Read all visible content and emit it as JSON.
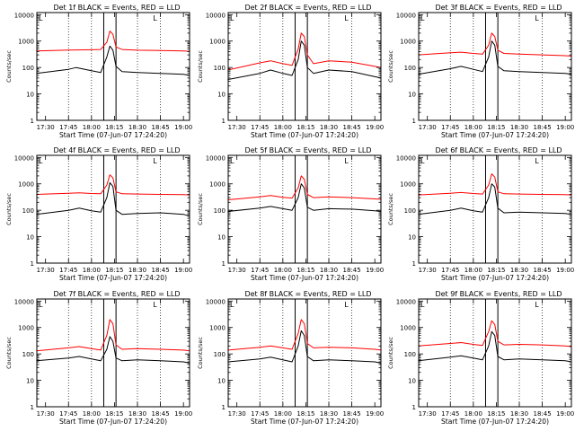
{
  "colors": {
    "events": "#000000",
    "lld": "#ff0000",
    "axis": "#000000",
    "background": "#ffffff"
  },
  "chart_data": [
    {
      "type": "line",
      "title": "Det 1f BLACK = Events, RED = LLD",
      "xlabel": "Start Time (07-Jun-07 17:24:20)",
      "ylabel": "Counts/sec",
      "x_ticks": [
        "17:30",
        "17:45",
        "18:00",
        "18:15",
        "18:30",
        "18:45",
        "19:00"
      ],
      "y_ticks": [
        "1",
        "10",
        "100",
        "1000",
        "10000"
      ],
      "ylim": [
        1,
        12000
      ],
      "yscale": "log",
      "grid": "dotted vertical at 17:45, 18:00, 18:30, 18:45",
      "corner_marks": [
        "L",
        "L"
      ],
      "interval_markers": [
        "18:08",
        "18:16"
      ],
      "series": [
        {
          "color": "red",
          "x": [
            "17:24",
            "17:45",
            "18:00",
            "18:06",
            "18:10",
            "18:12",
            "18:14",
            "18:16",
            "18:20",
            "18:30",
            "18:45",
            "19:00",
            "19:04"
          ],
          "values": [
            420,
            460,
            470,
            480,
            900,
            2400,
            1800,
            600,
            480,
            450,
            440,
            420,
            410
          ]
        },
        {
          "color": "black",
          "x": [
            "17:24",
            "17:45",
            "17:50",
            "18:00",
            "18:06",
            "18:10",
            "18:12",
            "18:14",
            "18:16",
            "18:20",
            "18:30",
            "18:45",
            "19:00",
            "19:04"
          ],
          "values": [
            60,
            85,
            100,
            75,
            65,
            250,
            650,
            450,
            110,
            70,
            65,
            60,
            55,
            50
          ]
        }
      ]
    },
    {
      "type": "line",
      "title": "Det 2f BLACK = Events, RED = LLD",
      "xlabel": "Start Time (07-Jun-07 17:24:20)",
      "ylabel": "Counts/sec",
      "x_ticks": [
        "17:30",
        "17:45",
        "18:00",
        "18:15",
        "18:30",
        "18:45",
        "19:00"
      ],
      "y_ticks": [
        "1",
        "10",
        "100",
        "1000",
        "10000"
      ],
      "ylim": [
        1,
        12000
      ],
      "yscale": "log",
      "grid": "dotted vertical at 17:45, 18:00, 18:30, 18:45",
      "corner_marks": [
        "L",
        "L"
      ],
      "interval_markers": [
        "18:08",
        "18:16"
      ],
      "series": [
        {
          "color": "red",
          "x": [
            "17:24",
            "17:45",
            "17:52",
            "18:00",
            "18:06",
            "18:10",
            "18:12",
            "18:14",
            "18:16",
            "18:20",
            "18:30",
            "18:45",
            "19:00",
            "19:04"
          ],
          "values": [
            80,
            150,
            180,
            140,
            120,
            500,
            2000,
            1500,
            300,
            140,
            180,
            160,
            110,
            100
          ]
        },
        {
          "color": "black",
          "x": [
            "17:24",
            "17:45",
            "17:52",
            "18:00",
            "18:06",
            "18:10",
            "18:12",
            "18:14",
            "18:16",
            "18:20",
            "18:30",
            "18:45",
            "19:00",
            "19:04"
          ],
          "values": [
            35,
            60,
            80,
            60,
            50,
            200,
            1000,
            700,
            100,
            60,
            80,
            70,
            45,
            40
          ]
        }
      ]
    },
    {
      "type": "line",
      "title": "Det 3f BLACK = Events, RED = LLD",
      "xlabel": "Start Time (07-Jun-07 17:24:20)",
      "ylabel": "Counts/sec",
      "x_ticks": [
        "17:30",
        "17:45",
        "18:00",
        "18:15",
        "18:30",
        "18:45",
        "19:00"
      ],
      "y_ticks": [
        "1",
        "10",
        "100",
        "1000",
        "10000"
      ],
      "ylim": [
        1,
        12000
      ],
      "yscale": "log",
      "grid": "dotted vertical at 17:45, 18:00, 18:30, 18:45",
      "corner_marks": [
        "L",
        "L"
      ],
      "interval_markers": [
        "18:08",
        "18:16"
      ],
      "series": [
        {
          "color": "red",
          "x": [
            "17:24",
            "17:45",
            "17:52",
            "18:00",
            "18:06",
            "18:10",
            "18:12",
            "18:14",
            "18:16",
            "18:20",
            "18:30",
            "18:45",
            "19:00",
            "19:04"
          ],
          "values": [
            300,
            360,
            380,
            340,
            320,
            700,
            2000,
            1500,
            450,
            340,
            320,
            300,
            280,
            270
          ]
        },
        {
          "color": "black",
          "x": [
            "17:24",
            "17:45",
            "17:52",
            "18:00",
            "18:06",
            "18:10",
            "18:12",
            "18:14",
            "18:16",
            "18:20",
            "18:30",
            "18:45",
            "19:00",
            "19:04"
          ],
          "values": [
            55,
            90,
            110,
            85,
            70,
            250,
            1000,
            700,
            110,
            75,
            70,
            65,
            60,
            55
          ]
        }
      ]
    },
    {
      "type": "line",
      "title": "Det 4f BLACK = Events, RED = LLD",
      "xlabel": "Start Time (07-Jun-07 17:24:20)",
      "ylabel": "Counts/sec",
      "x_ticks": [
        "17:30",
        "17:45",
        "18:00",
        "18:15",
        "18:30",
        "18:45",
        "19:00"
      ],
      "y_ticks": [
        "1",
        "10",
        "100",
        "1000",
        "10000"
      ],
      "ylim": [
        1,
        12000
      ],
      "yscale": "log",
      "grid": "dotted vertical at 17:45, 18:00, 18:30, 18:45",
      "corner_marks": [
        "L",
        "L"
      ],
      "interval_markers": [
        "18:08",
        "18:16"
      ],
      "series": [
        {
          "color": "red",
          "x": [
            "17:24",
            "17:45",
            "17:52",
            "18:00",
            "18:06",
            "18:10",
            "18:12",
            "18:14",
            "18:16",
            "18:20",
            "18:30",
            "18:45",
            "19:00",
            "19:04"
          ],
          "values": [
            400,
            440,
            460,
            430,
            420,
            900,
            2200,
            1700,
            500,
            420,
            410,
            400,
            390,
            380
          ]
        },
        {
          "color": "black",
          "x": [
            "17:24",
            "17:45",
            "17:52",
            "18:00",
            "18:06",
            "18:10",
            "18:12",
            "18:14",
            "18:16",
            "18:20",
            "18:30",
            "18:45",
            "19:00",
            "19:04"
          ],
          "values": [
            70,
            100,
            120,
            95,
            85,
            300,
            1100,
            800,
            100,
            70,
            75,
            80,
            70,
            60
          ]
        }
      ]
    },
    {
      "type": "line",
      "title": "Det 5f BLACK = Events, RED = LLD",
      "xlabel": "Start Time (07-Jun-07 17:24:20)",
      "ylabel": "Counts/sec",
      "x_ticks": [
        "17:30",
        "17:45",
        "18:00",
        "18:15",
        "18:30",
        "18:45",
        "19:00"
      ],
      "y_ticks": [
        "1",
        "10",
        "100",
        "1000",
        "10000"
      ],
      "ylim": [
        1,
        12000
      ],
      "yscale": "log",
      "grid": "dotted vertical at 17:45, 18:00, 18:30, 18:45",
      "corner_marks": [
        "L",
        "L"
      ],
      "interval_markers": [
        "18:08",
        "18:16"
      ],
      "series": [
        {
          "color": "red",
          "x": [
            "17:24",
            "17:45",
            "17:52",
            "18:00",
            "18:06",
            "18:10",
            "18:12",
            "18:14",
            "18:16",
            "18:20",
            "18:30",
            "18:45",
            "19:00",
            "19:04"
          ],
          "values": [
            250,
            320,
            360,
            310,
            290,
            700,
            2000,
            1500,
            400,
            300,
            320,
            300,
            270,
            260
          ]
        },
        {
          "color": "black",
          "x": [
            "17:24",
            "17:45",
            "17:52",
            "18:00",
            "18:06",
            "18:10",
            "18:12",
            "18:14",
            "18:16",
            "18:20",
            "18:30",
            "18:45",
            "19:00",
            "19:04"
          ],
          "values": [
            90,
            120,
            140,
            115,
            100,
            300,
            1000,
            700,
            130,
            100,
            115,
            110,
            95,
            90
          ]
        }
      ]
    },
    {
      "type": "line",
      "title": "Det 6f BLACK = Events, RED = LLD",
      "xlabel": "Start Time (07-Jun-07 17:24:20)",
      "ylabel": "Counts/sec",
      "x_ticks": [
        "17:30",
        "17:45",
        "18:00",
        "18:15",
        "18:30",
        "18:45",
        "19:00"
      ],
      "y_ticks": [
        "1",
        "10",
        "100",
        "1000",
        "10000"
      ],
      "ylim": [
        1,
        12000
      ],
      "yscale": "log",
      "grid": "dotted vertical at 17:45, 18:00, 18:30, 18:45",
      "corner_marks": [
        "L",
        "L"
      ],
      "interval_markers": [
        "18:08",
        "18:16"
      ],
      "series": [
        {
          "color": "red",
          "x": [
            "17:24",
            "17:45",
            "17:52",
            "18:00",
            "18:06",
            "18:10",
            "18:12",
            "18:14",
            "18:16",
            "18:20",
            "18:30",
            "18:45",
            "19:00",
            "19:04"
          ],
          "values": [
            380,
            440,
            470,
            430,
            410,
            900,
            2400,
            1800,
            500,
            420,
            410,
            400,
            390,
            380
          ]
        },
        {
          "color": "black",
          "x": [
            "17:24",
            "17:45",
            "17:52",
            "18:00",
            "18:06",
            "18:10",
            "18:12",
            "18:14",
            "18:16",
            "18:20",
            "18:30",
            "18:45",
            "19:00",
            "19:04"
          ],
          "values": [
            70,
            100,
            120,
            95,
            85,
            300,
            1000,
            750,
            120,
            80,
            85,
            80,
            75,
            70
          ]
        }
      ]
    },
    {
      "type": "line",
      "title": "Det 7f BLACK = Events, RED = LLD",
      "xlabel": "Start Time (07-Jun-07 17:24:20)",
      "ylabel": "Counts/sec",
      "x_ticks": [
        "17:30",
        "17:45",
        "18:00",
        "18:15",
        "18:30",
        "18:45",
        "19:00"
      ],
      "y_ticks": [
        "1",
        "10",
        "100",
        "1000",
        "10000"
      ],
      "ylim": [
        1,
        12000
      ],
      "yscale": "log",
      "grid": "dotted vertical at 17:45, 18:00, 18:30, 18:45",
      "corner_marks": [
        "L",
        "L"
      ],
      "interval_markers": [
        "18:08",
        "18:16"
      ],
      "series": [
        {
          "color": "red",
          "x": [
            "17:24",
            "17:45",
            "17:52",
            "18:00",
            "18:06",
            "18:10",
            "18:12",
            "18:14",
            "18:16",
            "18:20",
            "18:30",
            "18:45",
            "19:00",
            "19:04"
          ],
          "values": [
            130,
            170,
            190,
            160,
            140,
            500,
            2000,
            1400,
            220,
            150,
            160,
            150,
            140,
            130
          ]
        },
        {
          "color": "black",
          "x": [
            "17:24",
            "17:45",
            "17:52",
            "18:00",
            "18:06",
            "18:10",
            "18:12",
            "18:14",
            "18:16",
            "18:20",
            "18:30",
            "18:45",
            "19:00",
            "19:04"
          ],
          "values": [
            55,
            70,
            80,
            65,
            55,
            150,
            450,
            300,
            70,
            55,
            60,
            55,
            50,
            45
          ]
        }
      ]
    },
    {
      "type": "line",
      "title": "Det 8f BLACK = Events, RED = LLD",
      "xlabel": "Start Time (07-Jun-07 17:24:20)",
      "ylabel": "Counts/sec",
      "x_ticks": [
        "17:30",
        "17:45",
        "18:00",
        "18:15",
        "18:30",
        "18:45",
        "19:00"
      ],
      "y_ticks": [
        "1",
        "10",
        "100",
        "1000",
        "10000"
      ],
      "ylim": [
        1,
        12000
      ],
      "yscale": "log",
      "grid": "dotted vertical at 17:45, 18:00, 18:30, 18:45",
      "corner_marks": [
        "L",
        "L"
      ],
      "interval_markers": [
        "18:08",
        "18:16"
      ],
      "series": [
        {
          "color": "red",
          "x": [
            "17:24",
            "17:45",
            "17:52",
            "18:00",
            "18:06",
            "18:10",
            "18:12",
            "18:14",
            "18:16",
            "18:20",
            "18:30",
            "18:45",
            "19:00",
            "19:04"
          ],
          "values": [
            140,
            180,
            200,
            170,
            150,
            600,
            2000,
            1400,
            250,
            170,
            180,
            170,
            150,
            140
          ]
        },
        {
          "color": "black",
          "x": [
            "17:24",
            "17:45",
            "17:52",
            "18:00",
            "18:06",
            "18:10",
            "18:12",
            "18:14",
            "18:16",
            "18:20",
            "18:30",
            "18:45",
            "19:00",
            "19:04"
          ],
          "values": [
            50,
            65,
            75,
            60,
            50,
            200,
            750,
            500,
            80,
            55,
            60,
            55,
            50,
            45
          ]
        }
      ]
    },
    {
      "type": "line",
      "title": "Det 9f BLACK = Events, RED = LLD",
      "xlabel": "Start Time (07-Jun-07 17:24:20)",
      "ylabel": "Counts/sec",
      "x_ticks": [
        "17:30",
        "17:45",
        "18:00",
        "18:15",
        "18:30",
        "18:45",
        "19:00"
      ],
      "y_ticks": [
        "1",
        "10",
        "100",
        "1000",
        "10000"
      ],
      "ylim": [
        1,
        12000
      ],
      "yscale": "log",
      "grid": "dotted vertical at 17:45, 18:00, 18:30, 18:45",
      "corner_marks": [
        "L",
        "L"
      ],
      "interval_markers": [
        "18:08",
        "18:16"
      ],
      "series": [
        {
          "color": "red",
          "x": [
            "17:24",
            "17:45",
            "17:52",
            "18:00",
            "18:06",
            "18:10",
            "18:12",
            "18:14",
            "18:16",
            "18:20",
            "18:30",
            "18:45",
            "19:00",
            "19:04"
          ],
          "values": [
            200,
            250,
            270,
            230,
            210,
            700,
            1800,
            1300,
            300,
            220,
            230,
            220,
            200,
            190
          ]
        },
        {
          "color": "black",
          "x": [
            "17:24",
            "17:45",
            "17:52",
            "18:00",
            "18:06",
            "18:10",
            "18:12",
            "18:14",
            "18:16",
            "18:20",
            "18:30",
            "18:45",
            "19:00",
            "19:04"
          ],
          "values": [
            55,
            75,
            85,
            70,
            60,
            200,
            700,
            500,
            80,
            60,
            65,
            60,
            55,
            50
          ]
        }
      ]
    }
  ]
}
